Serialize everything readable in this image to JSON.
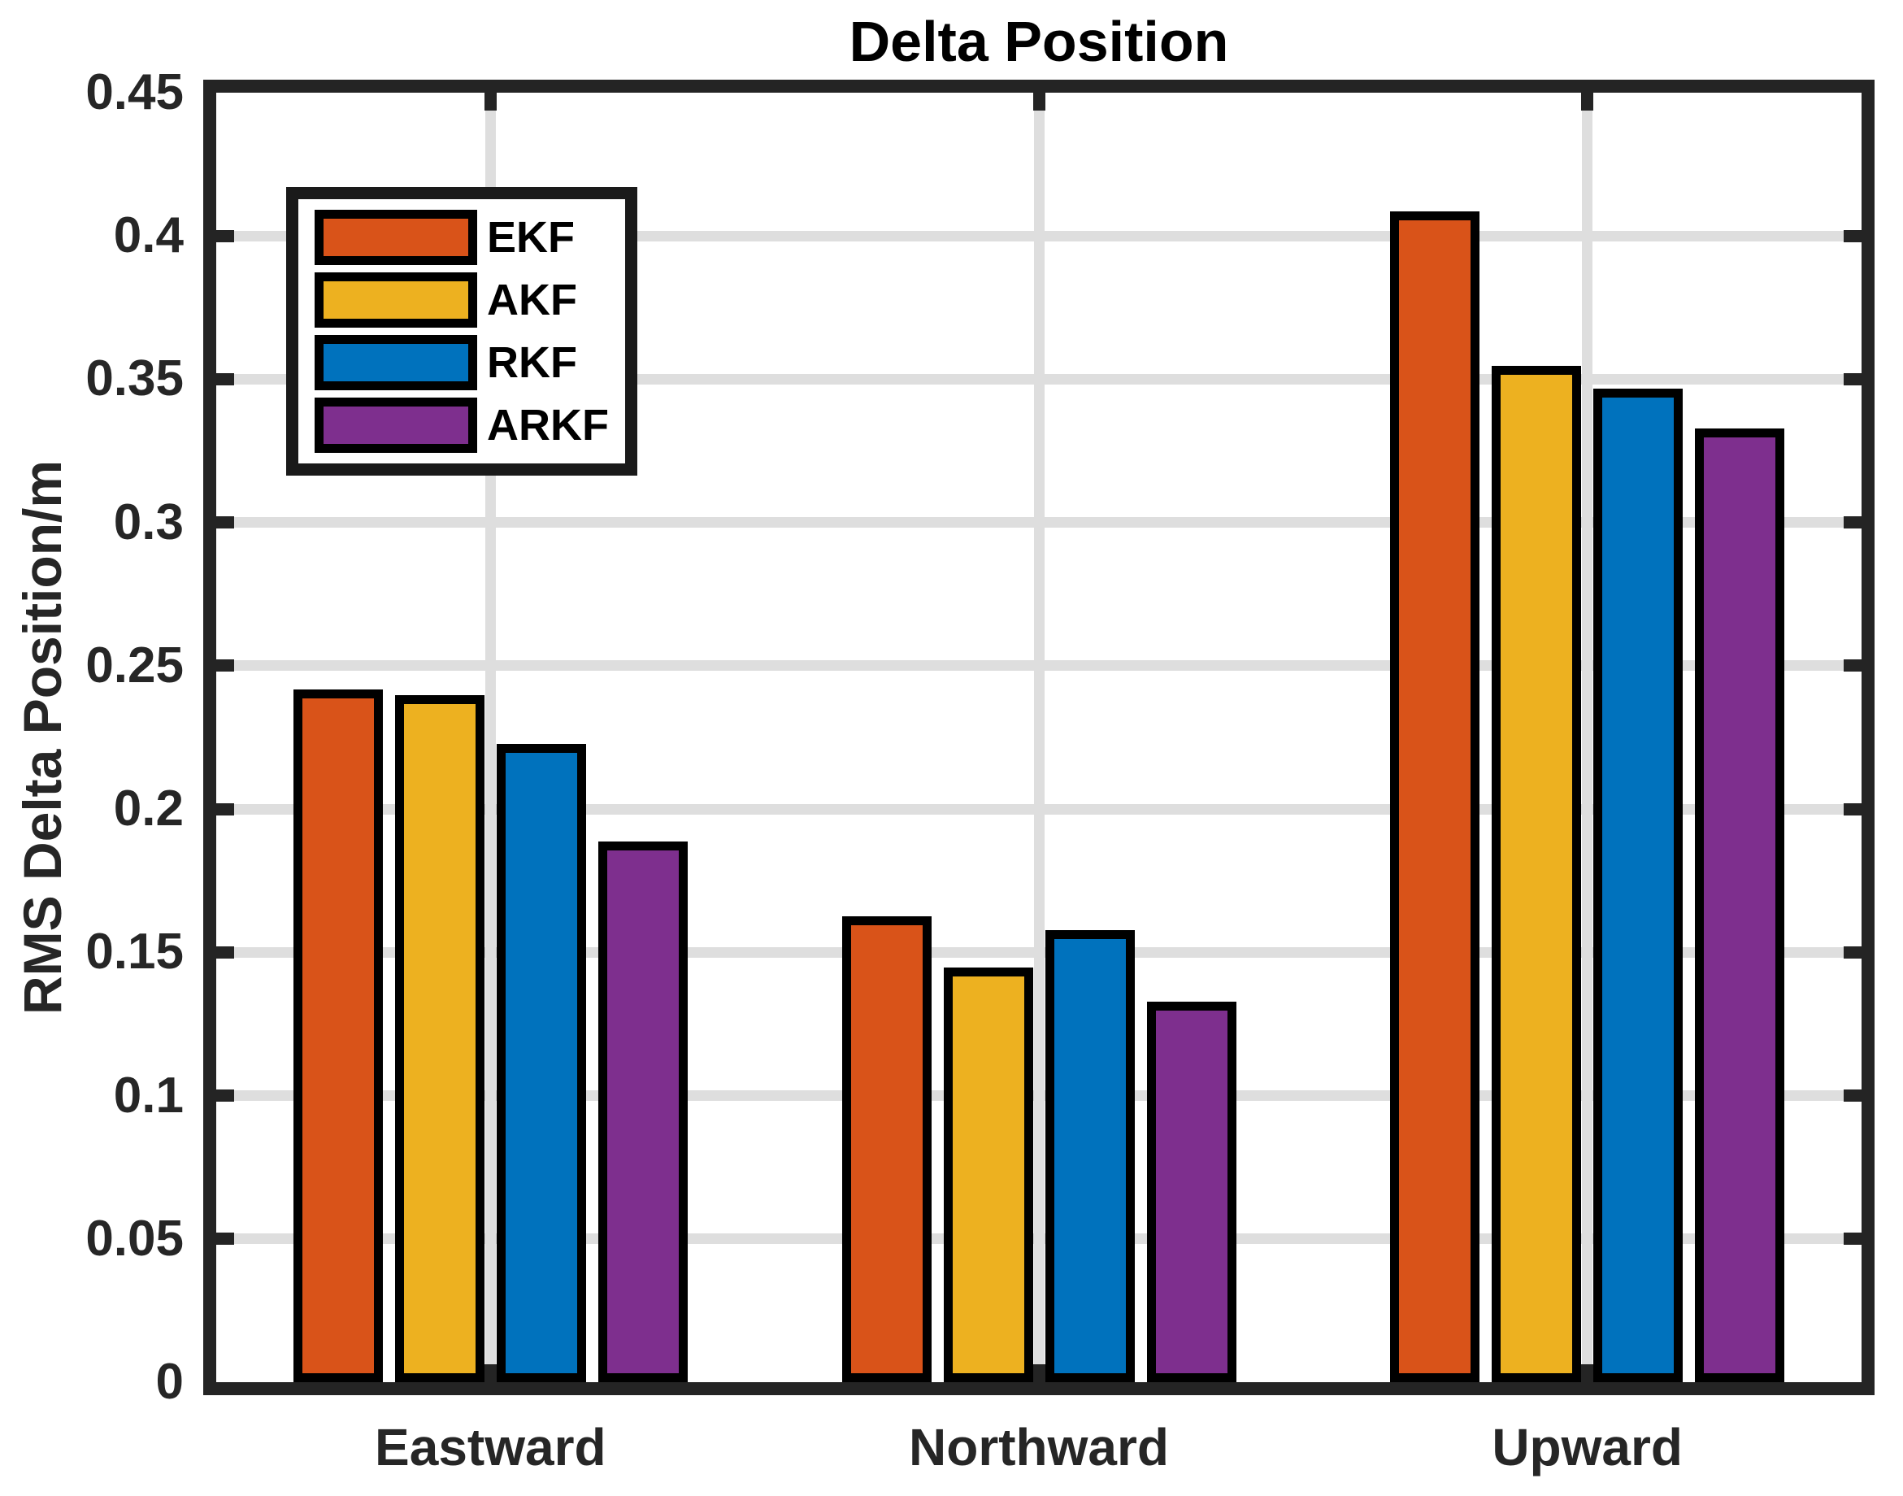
{
  "title": "Delta Position",
  "chart_data": {
    "type": "bar",
    "title": "Delta Position",
    "ylabel": "RMS Delta Position/m",
    "xlabel": "",
    "categories": [
      "Eastward",
      "Northward",
      "Upward"
    ],
    "series": [
      {
        "name": "EKF",
        "color": "#D95319",
        "values": [
          0.24,
          0.161,
          0.407
        ]
      },
      {
        "name": "AKF",
        "color": "#EDB120",
        "values": [
          0.238,
          0.143,
          0.353
        ]
      },
      {
        "name": "RKF",
        "color": "#0072BD",
        "values": [
          0.221,
          0.156,
          0.345
        ]
      },
      {
        "name": "ARKF",
        "color": "#7E2F8E",
        "values": [
          0.187,
          0.131,
          0.331
        ]
      }
    ],
    "ylim": [
      0,
      0.45
    ],
    "ytick_step": 0.05,
    "ytick_labels": [
      "0",
      "0.05",
      "0.1",
      "0.15",
      "0.2",
      "0.25",
      "0.3",
      "0.35",
      "0.4",
      "0.45"
    ],
    "grid": true,
    "legend_position": "upper-left-inside",
    "bar_edge_color": "#000000"
  },
  "colors": {
    "background": "#FFFFFF",
    "axis": "#242424",
    "grid": "#DEDEDE",
    "text": "#262626",
    "title_text": "#000000"
  }
}
